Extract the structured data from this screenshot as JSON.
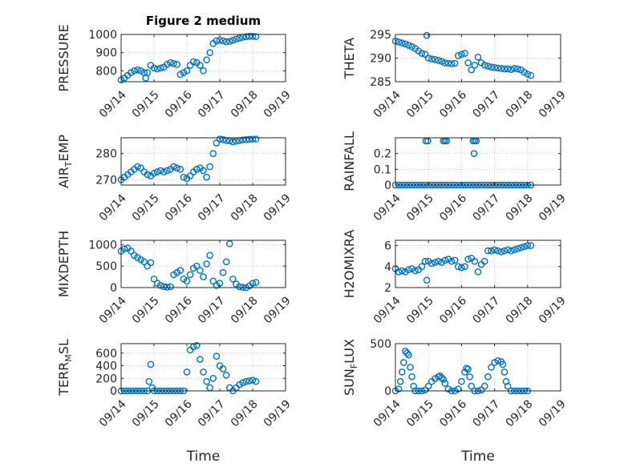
{
  "figure": {
    "xlabel": "Time"
  },
  "colors": {
    "marker": "#0072bd",
    "axis": "#262626",
    "grid": "#c8c8c8"
  },
  "chart_data": [
    {
      "type": "scatter",
      "title": "Figure 2 medium",
      "ylabel": "PRESSURE",
      "xlim": [
        "09/14",
        "09/19"
      ],
      "ylim": [
        740,
        1000
      ],
      "xticks": [
        "09/14",
        "09/15",
        "09/16",
        "09/17",
        "09/18",
        "09/19"
      ],
      "yticks": [
        800,
        900,
        1000
      ],
      "grid": true,
      "x_unit": "day",
      "x": [
        0.0,
        0.1,
        0.2,
        0.3,
        0.4,
        0.5,
        0.6,
        0.7,
        0.75,
        0.8,
        0.9,
        1.0,
        1.1,
        1.2,
        1.3,
        1.4,
        1.5,
        1.6,
        1.7,
        1.8,
        1.9,
        2.0,
        2.1,
        2.2,
        2.3,
        2.4,
        2.5,
        2.6,
        2.7,
        2.8,
        2.9,
        3.0,
        3.1,
        3.2,
        3.3,
        3.4,
        3.5,
        3.6,
        3.7,
        3.8,
        3.9,
        4.0,
        4.1
      ],
      "y": [
        750,
        760,
        775,
        790,
        800,
        805,
        800,
        790,
        760,
        790,
        830,
        815,
        810,
        815,
        820,
        835,
        845,
        840,
        835,
        780,
        790,
        800,
        830,
        850,
        845,
        830,
        800,
        860,
        900,
        950,
        965,
        968,
        965,
        960,
        962,
        968,
        975,
        980,
        985,
        988,
        990,
        990,
        988
      ]
    },
    {
      "type": "scatter",
      "title": "",
      "ylabel": "THETA",
      "xlim": [
        "09/14",
        "09/19"
      ],
      "ylim": [
        285,
        295
      ],
      "xticks": [
        "09/14",
        "09/15",
        "09/16",
        "09/17",
        "09/18",
        "09/19"
      ],
      "yticks": [
        285,
        290,
        295
      ],
      "grid": true,
      "x_unit": "day",
      "x": [
        0.0,
        0.1,
        0.2,
        0.3,
        0.4,
        0.5,
        0.6,
        0.7,
        0.8,
        0.9,
        0.95,
        1.0,
        1.1,
        1.2,
        1.3,
        1.4,
        1.5,
        1.6,
        1.7,
        1.8,
        1.9,
        2.0,
        2.1,
        2.2,
        2.3,
        2.4,
        2.5,
        2.6,
        2.7,
        2.8,
        2.9,
        3.0,
        3.1,
        3.2,
        3.3,
        3.4,
        3.5,
        3.6,
        3.7,
        3.8,
        3.9,
        4.0,
        4.1
      ],
      "y": [
        293.6,
        293.4,
        293.2,
        293.0,
        292.7,
        292.4,
        292.0,
        291.5,
        291.0,
        290.8,
        294.8,
        290.0,
        289.8,
        289.7,
        289.5,
        289.3,
        289.0,
        288.9,
        288.8,
        288.9,
        290.5,
        290.8,
        291.0,
        289.0,
        287.5,
        288.5,
        290.2,
        289.0,
        288.5,
        288.3,
        288.1,
        288.0,
        287.9,
        287.8,
        287.7,
        287.7,
        287.6,
        287.8,
        287.7,
        287.5,
        287.0,
        286.6,
        286.3
      ]
    },
    {
      "type": "scatter",
      "title": "",
      "ylabel": "AIR_TEMP",
      "xlim": [
        "09/14",
        "09/19"
      ],
      "ylim": [
        268,
        286
      ],
      "xticks": [
        "09/14",
        "09/15",
        "09/16",
        "09/17",
        "09/18",
        "09/19"
      ],
      "yticks": [
        270,
        280
      ],
      "grid": true,
      "x_unit": "day",
      "x": [
        0.0,
        0.1,
        0.2,
        0.3,
        0.4,
        0.5,
        0.6,
        0.7,
        0.8,
        0.9,
        1.0,
        1.1,
        1.2,
        1.3,
        1.4,
        1.5,
        1.6,
        1.7,
        1.8,
        1.9,
        2.0,
        2.1,
        2.2,
        2.3,
        2.4,
        2.5,
        2.6,
        2.7,
        2.8,
        2.9,
        3.0,
        3.1,
        3.2,
        3.3,
        3.4,
        3.5,
        3.6,
        3.7,
        3.8,
        3.9,
        4.0,
        4.1
      ],
      "y": [
        270,
        271,
        272,
        273,
        274,
        275,
        274.5,
        273,
        272,
        271.5,
        272.5,
        273,
        273.5,
        273,
        273.5,
        274,
        275,
        274.5,
        274,
        271,
        270.5,
        271.5,
        273,
        274,
        274.5,
        273.5,
        271,
        275,
        280,
        284,
        285.5,
        285.3,
        285,
        284.8,
        284.5,
        284.7,
        285,
        285.2,
        285.3,
        285.4,
        285.5,
        285.5
      ]
    },
    {
      "type": "scatter",
      "title": "",
      "ylabel": "RAINFALL",
      "xlim": [
        "09/14",
        "09/19"
      ],
      "ylim": [
        0,
        0.3
      ],
      "xticks": [
        "09/14",
        "09/15",
        "09/16",
        "09/17",
        "09/18",
        "09/19"
      ],
      "yticks": [
        0,
        0.1,
        0.2
      ],
      "grid": true,
      "x_unit": "day",
      "x": [
        0.0,
        0.1,
        0.2,
        0.3,
        0.4,
        0.5,
        0.6,
        0.7,
        0.8,
        0.9,
        1.0,
        1.1,
        1.2,
        1.3,
        1.4,
        1.5,
        1.6,
        1.7,
        1.8,
        1.9,
        2.0,
        2.1,
        2.2,
        2.3,
        2.4,
        2.5,
        2.6,
        2.7,
        2.8,
        2.9,
        3.0,
        3.1,
        3.2,
        3.3,
        3.4,
        3.5,
        3.6,
        3.7,
        3.8,
        3.9,
        4.0,
        4.1,
        0.92,
        0.98,
        1.45,
        1.5,
        1.55,
        2.35,
        2.4,
        2.45,
        2.38
      ],
      "y": [
        0,
        0,
        0,
        0,
        0,
        0,
        0,
        0,
        0,
        0,
        0,
        0,
        0,
        0,
        0,
        0,
        0,
        0,
        0,
        0,
        0,
        0,
        0,
        0,
        0,
        0,
        0,
        0,
        0,
        0,
        0,
        0,
        0,
        0,
        0,
        0,
        0,
        0,
        0,
        0,
        0,
        0,
        0.28,
        0.28,
        0.28,
        0.28,
        0.28,
        0.28,
        0.28,
        0.28,
        0.2
      ]
    },
    {
      "type": "scatter",
      "title": "",
      "ylabel": "MIXDEPTH",
      "xlim": [
        "09/14",
        "09/19"
      ],
      "ylim": [
        0,
        1100
      ],
      "xticks": [
        "09/14",
        "09/15",
        "09/16",
        "09/17",
        "09/18",
        "09/19"
      ],
      "yticks": [
        0,
        500,
        1000
      ],
      "grid": true,
      "x_unit": "day",
      "x": [
        0.0,
        0.1,
        0.2,
        0.3,
        0.4,
        0.5,
        0.6,
        0.7,
        0.8,
        0.9,
        1.0,
        1.1,
        1.2,
        1.3,
        1.4,
        1.5,
        1.6,
        1.7,
        1.8,
        1.9,
        2.0,
        2.1,
        2.2,
        2.3,
        2.4,
        2.5,
        2.6,
        2.7,
        2.8,
        2.9,
        3.0,
        3.1,
        3.2,
        3.3,
        3.4,
        3.5,
        3.6,
        3.7,
        3.8,
        3.9,
        4.0,
        4.1
      ],
      "y": [
        850,
        900,
        920,
        850,
        750,
        700,
        650,
        600,
        500,
        580,
        200,
        100,
        50,
        20,
        10,
        20,
        300,
        350,
        400,
        200,
        150,
        300,
        450,
        500,
        400,
        250,
        550,
        750,
        150,
        50,
        100,
        350,
        600,
        1020,
        200,
        80,
        20,
        5,
        0,
        40,
        100,
        120
      ]
    },
    {
      "type": "scatter",
      "title": "",
      "ylabel": "H2OMIXRA",
      "xlim": [
        "09/14",
        "09/19"
      ],
      "ylim": [
        2,
        6.5
      ],
      "xticks": [
        "09/14",
        "09/15",
        "09/16",
        "09/17",
        "09/18",
        "09/19"
      ],
      "yticks": [
        2,
        4,
        6
      ],
      "grid": true,
      "x_unit": "day",
      "x": [
        0.0,
        0.1,
        0.2,
        0.3,
        0.4,
        0.5,
        0.6,
        0.7,
        0.8,
        0.9,
        0.95,
        1.0,
        1.1,
        1.2,
        1.3,
        1.4,
        1.5,
        1.6,
        1.7,
        1.8,
        1.9,
        2.0,
        2.1,
        2.2,
        2.3,
        2.4,
        2.5,
        2.6,
        2.7,
        2.8,
        2.9,
        3.0,
        3.1,
        3.2,
        3.3,
        3.4,
        3.5,
        3.6,
        3.7,
        3.8,
        3.9,
        4.0,
        4.1
      ],
      "y": [
        3.8,
        3.5,
        3.6,
        3.5,
        3.7,
        3.8,
        3.6,
        3.7,
        4.0,
        4.5,
        2.7,
        4.5,
        4.3,
        4.4,
        4.5,
        4.4,
        4.6,
        4.7,
        4.5,
        4.6,
        4.0,
        3.9,
        4.0,
        4.7,
        4.8,
        4.5,
        3.5,
        4.2,
        4.5,
        5.5,
        5.5,
        5.6,
        5.5,
        5.4,
        5.5,
        5.6,
        5.5,
        5.6,
        5.7,
        5.8,
        5.9,
        6.0,
        6.0
      ]
    },
    {
      "type": "scatter",
      "title": "",
      "ylabel": "TERR_MSL",
      "xlim": [
        "09/14",
        "09/19"
      ],
      "ylim": [
        0,
        750
      ],
      "xticks": [
        "09/14",
        "09/15",
        "09/16",
        "09/17",
        "09/18",
        "09/19"
      ],
      "yticks": [
        0,
        200,
        400,
        600
      ],
      "grid": true,
      "x_unit": "day",
      "x": [
        0.0,
        0.1,
        0.2,
        0.3,
        0.4,
        0.5,
        0.6,
        0.7,
        0.8,
        0.85,
        0.9,
        0.95,
        1.0,
        1.1,
        1.2,
        1.3,
        1.4,
        1.5,
        1.6,
        1.7,
        1.8,
        1.9,
        2.0,
        2.1,
        2.2,
        2.3,
        2.4,
        2.5,
        2.6,
        2.7,
        2.8,
        2.9,
        3.0,
        3.1,
        3.2,
        3.3,
        3.4,
        3.5,
        3.6,
        3.7,
        3.8,
        3.9,
        4.0,
        4.1
      ],
      "y": [
        0,
        0,
        0,
        0,
        0,
        0,
        0,
        0,
        0,
        150,
        420,
        50,
        0,
        0,
        0,
        0,
        0,
        0,
        0,
        0,
        0,
        0,
        300,
        650,
        700,
        720,
        500,
        300,
        150,
        50,
        200,
        550,
        400,
        350,
        250,
        50,
        0,
        50,
        100,
        130,
        150,
        160,
        170,
        150
      ]
    },
    {
      "type": "scatter",
      "title": "",
      "ylabel": "SUN_FLUX",
      "xlim": [
        "09/14",
        "09/19"
      ],
      "ylim": [
        0,
        500
      ],
      "xticks": [
        "09/14",
        "09/15",
        "09/16",
        "09/17",
        "09/18",
        "09/19"
      ],
      "yticks": [
        0,
        500
      ],
      "grid": true,
      "x_unit": "day",
      "x": [
        0.0,
        0.1,
        0.15,
        0.2,
        0.25,
        0.3,
        0.35,
        0.4,
        0.45,
        0.5,
        0.55,
        0.6,
        0.7,
        0.8,
        0.9,
        1.0,
        1.1,
        1.2,
        1.3,
        1.35,
        1.4,
        1.45,
        1.5,
        1.6,
        1.7,
        1.8,
        1.9,
        2.0,
        2.1,
        2.15,
        2.2,
        2.25,
        2.3,
        2.4,
        2.5,
        2.6,
        2.7,
        2.8,
        2.9,
        3.0,
        3.1,
        3.2,
        3.25,
        3.3,
        3.35,
        3.4,
        3.5,
        3.6,
        3.7,
        3.8,
        3.9,
        4.0
      ],
      "y": [
        0,
        20,
        100,
        200,
        300,
        420,
        400,
        380,
        250,
        150,
        50,
        0,
        0,
        0,
        10,
        50,
        100,
        130,
        150,
        160,
        140,
        120,
        80,
        20,
        0,
        0,
        20,
        100,
        200,
        240,
        230,
        150,
        50,
        0,
        0,
        10,
        50,
        150,
        250,
        300,
        320,
        310,
        280,
        200,
        100,
        50,
        0,
        0,
        0,
        0,
        0,
        0
      ]
    }
  ]
}
